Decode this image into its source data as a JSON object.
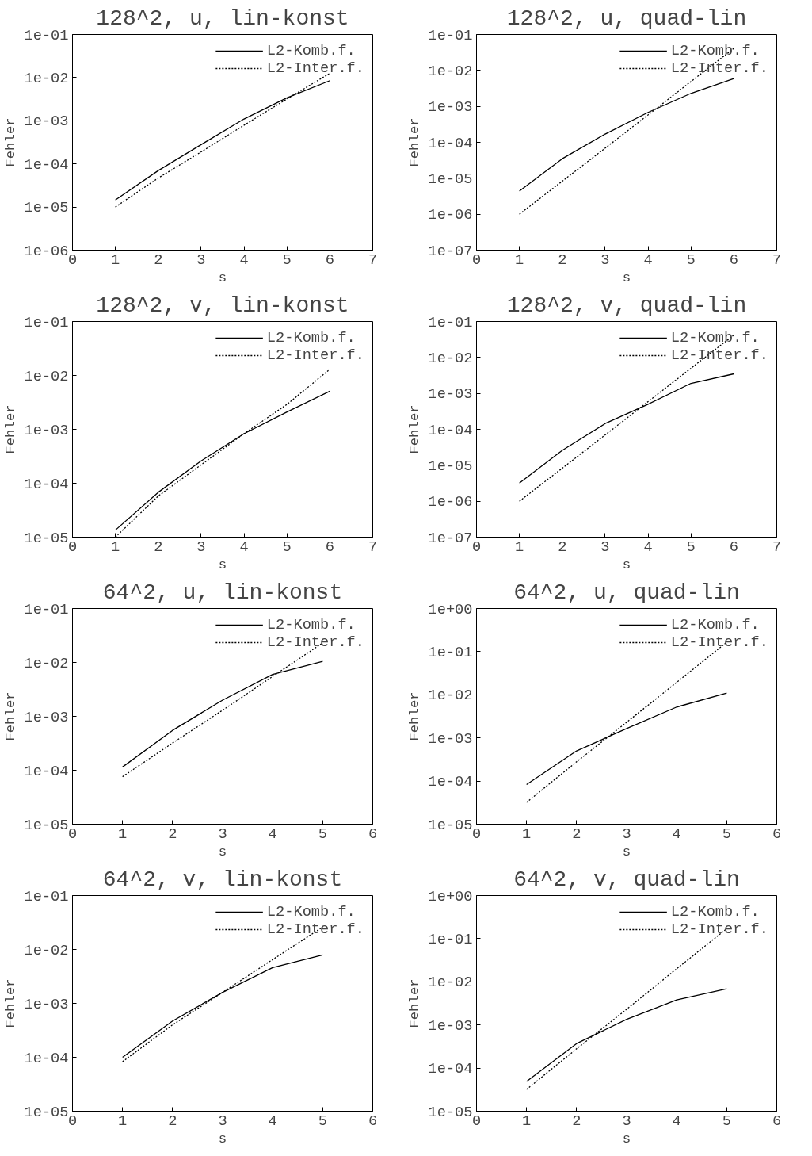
{
  "chart_data": [
    {
      "type": "line",
      "title": "128^2, u, lin-konst",
      "xlabel": "s",
      "ylabel": "Fehler",
      "x": [
        1,
        2,
        3,
        4,
        5,
        6
      ],
      "xlim": [
        0,
        7
      ],
      "xticks": [
        0,
        1,
        2,
        3,
        4,
        5,
        6,
        7
      ],
      "log": "y",
      "ylim": [
        1e-06,
        0.1
      ],
      "yticks": [
        {
          "value": 1e-06,
          "label": "1e-06"
        },
        {
          "value": 1e-05,
          "label": "1e-05"
        },
        {
          "value": 0.0001,
          "label": "1e-04"
        },
        {
          "value": 0.001,
          "label": "1e-03"
        },
        {
          "value": 0.01,
          "label": "1e-02"
        },
        {
          "value": 0.1,
          "label": "1e-01"
        }
      ],
      "legend": "top right",
      "grid": false,
      "series": [
        {
          "name": "L2-Komb.f.",
          "color": "#000000",
          "line_style": "solid",
          "values": [
            1.45e-05,
            7e-05,
            0.00028,
            0.0011,
            0.0034,
            0.0085
          ]
        },
        {
          "name": "L2-Inter.f.",
          "color": "#000000",
          "line_style": "dotted",
          "values": [
            1e-05,
            4.7e-05,
            0.00019,
            0.00079,
            0.0032,
            0.0126
          ]
        }
      ]
    },
    {
      "type": "line",
      "title": "128^2, u, quad-lin",
      "xlabel": "s",
      "ylabel": "Fehler",
      "x": [
        1,
        2,
        3,
        4,
        5,
        6
      ],
      "xlim": [
        0,
        7
      ],
      "xticks": [
        0,
        1,
        2,
        3,
        4,
        5,
        6,
        7
      ],
      "log": "y",
      "ylim": [
        1e-07,
        0.1
      ],
      "yticks": [
        {
          "value": 1e-07,
          "label": "1e-07"
        },
        {
          "value": 1e-06,
          "label": "1e-06"
        },
        {
          "value": 1e-05,
          "label": "1e-05"
        },
        {
          "value": 0.0001,
          "label": "1e-04"
        },
        {
          "value": 0.001,
          "label": "1e-03"
        },
        {
          "value": 0.01,
          "label": "1e-02"
        },
        {
          "value": 0.1,
          "label": "1e-01"
        }
      ],
      "legend": "top right",
      "grid": false,
      "series": [
        {
          "name": "L2-Komb.f.",
          "color": "#000000",
          "line_style": "solid",
          "values": [
            4.4e-06,
            3.5e-05,
            0.00017,
            0.00068,
            0.0023,
            0.0059
          ]
        },
        {
          "name": "L2-Inter.f.",
          "color": "#000000",
          "line_style": "dotted",
          "values": [
            1e-06,
            8.3e-06,
            6.9e-05,
            0.00058,
            0.0049,
            0.041
          ]
        }
      ]
    },
    {
      "type": "line",
      "title": "128^2, v, lin-konst",
      "xlabel": "s",
      "ylabel": "Fehler",
      "x": [
        1,
        2,
        3,
        4,
        5,
        6
      ],
      "xlim": [
        0,
        7
      ],
      "xticks": [
        0,
        1,
        2,
        3,
        4,
        5,
        6,
        7
      ],
      "log": "y",
      "ylim": [
        1e-05,
        0.1
      ],
      "yticks": [
        {
          "value": 1e-05,
          "label": "1e-05"
        },
        {
          "value": 0.0001,
          "label": "1e-04"
        },
        {
          "value": 0.001,
          "label": "1e-03"
        },
        {
          "value": 0.01,
          "label": "1e-02"
        },
        {
          "value": 0.1,
          "label": "1e-01"
        }
      ],
      "legend": "top right",
      "grid": false,
      "series": [
        {
          "name": "L2-Komb.f.",
          "color": "#000000",
          "line_style": "solid",
          "values": [
            1.35e-05,
            6.8e-05,
            0.00026,
            0.00083,
            0.0021,
            0.0051
          ]
        },
        {
          "name": "L2-Inter.f.",
          "color": "#000000",
          "line_style": "dotted",
          "values": [
            1e-05,
            5.8e-05,
            0.00022,
            0.00083,
            0.0029,
            0.013
          ]
        }
      ]
    },
    {
      "type": "line",
      "title": "128^2, v, quad-lin",
      "xlabel": "s",
      "ylabel": "Fehler",
      "x": [
        1,
        2,
        3,
        4,
        5,
        6
      ],
      "xlim": [
        0,
        7
      ],
      "xticks": [
        0,
        1,
        2,
        3,
        4,
        5,
        6,
        7
      ],
      "log": "y",
      "ylim": [
        1e-07,
        0.1
      ],
      "yticks": [
        {
          "value": 1e-07,
          "label": "1e-07"
        },
        {
          "value": 1e-06,
          "label": "1e-06"
        },
        {
          "value": 1e-05,
          "label": "1e-05"
        },
        {
          "value": 0.0001,
          "label": "1e-04"
        },
        {
          "value": 0.001,
          "label": "1e-03"
        },
        {
          "value": 0.01,
          "label": "1e-02"
        },
        {
          "value": 0.1,
          "label": "1e-01"
        }
      ],
      "legend": "top right",
      "grid": false,
      "series": [
        {
          "name": "L2-Komb.f.",
          "color": "#000000",
          "line_style": "solid",
          "values": [
            3.2e-06,
            2.6e-05,
            0.000145,
            0.0005,
            0.0019,
            0.0035
          ]
        },
        {
          "name": "L2-Inter.f.",
          "color": "#000000",
          "line_style": "dotted",
          "values": [
            1e-06,
            8.3e-06,
            7e-05,
            0.00059,
            0.005,
            0.042
          ]
        }
      ]
    },
    {
      "type": "line",
      "title": "64^2, u, lin-konst",
      "xlabel": "s",
      "ylabel": "Fehler",
      "x": [
        1,
        2,
        3,
        4,
        5
      ],
      "xlim": [
        0,
        6
      ],
      "xticks": [
        0,
        1,
        2,
        3,
        4,
        5,
        6
      ],
      "log": "y",
      "ylim": [
        1e-05,
        0.1
      ],
      "yticks": [
        {
          "value": 1e-05,
          "label": "1e-05"
        },
        {
          "value": 0.0001,
          "label": "1e-04"
        },
        {
          "value": 0.001,
          "label": "1e-03"
        },
        {
          "value": 0.01,
          "label": "1e-02"
        },
        {
          "value": 0.1,
          "label": "1e-01"
        }
      ],
      "legend": "top right",
      "grid": false,
      "series": [
        {
          "name": "L2-Komb.f.",
          "color": "#000000",
          "line_style": "solid",
          "values": [
            0.000115,
            0.00055,
            0.002,
            0.006,
            0.0105
          ]
        },
        {
          "name": "L2-Inter.f.",
          "color": "#000000",
          "line_style": "dotted",
          "values": [
            7.6e-05,
            0.00032,
            0.0013,
            0.0055,
            0.023
          ]
        }
      ]
    },
    {
      "type": "line",
      "title": "64^2, u, quad-lin",
      "xlabel": "s",
      "ylabel": "Fehler",
      "x": [
        1,
        2,
        3,
        4,
        5
      ],
      "xlim": [
        0,
        6
      ],
      "xticks": [
        0,
        1,
        2,
        3,
        4,
        5,
        6
      ],
      "log": "y",
      "ylim": [
        1e-05,
        1
      ],
      "yticks": [
        {
          "value": 1e-05,
          "label": "1e-05"
        },
        {
          "value": 0.0001,
          "label": "1e-04"
        },
        {
          "value": 0.001,
          "label": "1e-03"
        },
        {
          "value": 0.01,
          "label": "1e-02"
        },
        {
          "value": 0.1,
          "label": "1e-01"
        },
        {
          "value": 1,
          "label": "1e+00"
        }
      ],
      "legend": "top right",
      "grid": false,
      "series": [
        {
          "name": "L2-Komb.f.",
          "color": "#000000",
          "line_style": "solid",
          "values": [
            8.3e-05,
            0.0005,
            0.00165,
            0.0052,
            0.011
          ]
        },
        {
          "name": "L2-Inter.f.",
          "color": "#000000",
          "line_style": "dotted",
          "values": [
            3.2e-05,
            0.00028,
            0.0023,
            0.0195,
            0.165
          ]
        }
      ]
    },
    {
      "type": "line",
      "title": "64^2, v, lin-konst",
      "xlabel": "s",
      "ylabel": "Fehler",
      "x": [
        1,
        2,
        3,
        4,
        5
      ],
      "xlim": [
        0,
        6
      ],
      "xticks": [
        0,
        1,
        2,
        3,
        4,
        5,
        6
      ],
      "log": "y",
      "ylim": [
        1e-05,
        0.1
      ],
      "yticks": [
        {
          "value": 1e-05,
          "label": "1e-05"
        },
        {
          "value": 0.0001,
          "label": "1e-04"
        },
        {
          "value": 0.001,
          "label": "1e-03"
        },
        {
          "value": 0.01,
          "label": "1e-02"
        },
        {
          "value": 0.1,
          "label": "1e-01"
        }
      ],
      "legend": "top right",
      "grid": false,
      "series": [
        {
          "name": "L2-Komb.f.",
          "color": "#000000",
          "line_style": "solid",
          "values": [
            0.0001,
            0.00047,
            0.0016,
            0.0046,
            0.0079
          ]
        },
        {
          "name": "L2-Inter.f.",
          "color": "#000000",
          "line_style": "dotted",
          "values": [
            8.3e-05,
            0.0004,
            0.0016,
            0.0065,
            0.026
          ]
        }
      ]
    },
    {
      "type": "line",
      "title": "64^2, v, quad-lin",
      "xlabel": "s",
      "ylabel": "Fehler",
      "x": [
        1,
        2,
        3,
        4,
        5
      ],
      "xlim": [
        0,
        6
      ],
      "xticks": [
        0,
        1,
        2,
        3,
        4,
        5,
        6
      ],
      "log": "y",
      "ylim": [
        1e-05,
        1
      ],
      "yticks": [
        {
          "value": 1e-05,
          "label": "1e-05"
        },
        {
          "value": 0.0001,
          "label": "1e-04"
        },
        {
          "value": 0.001,
          "label": "1e-03"
        },
        {
          "value": 0.01,
          "label": "1e-02"
        },
        {
          "value": 0.1,
          "label": "1e-01"
        },
        {
          "value": 1,
          "label": "1e+00"
        }
      ],
      "legend": "top right",
      "grid": false,
      "series": [
        {
          "name": "L2-Komb.f.",
          "color": "#000000",
          "line_style": "solid",
          "values": [
            4.9e-05,
            0.00037,
            0.00135,
            0.0038,
            0.0069
          ]
        },
        {
          "name": "L2-Inter.f.",
          "color": "#000000",
          "line_style": "dotted",
          "values": [
            3.2e-05,
            0.00028,
            0.0023,
            0.02,
            0.17
          ]
        }
      ]
    }
  ]
}
